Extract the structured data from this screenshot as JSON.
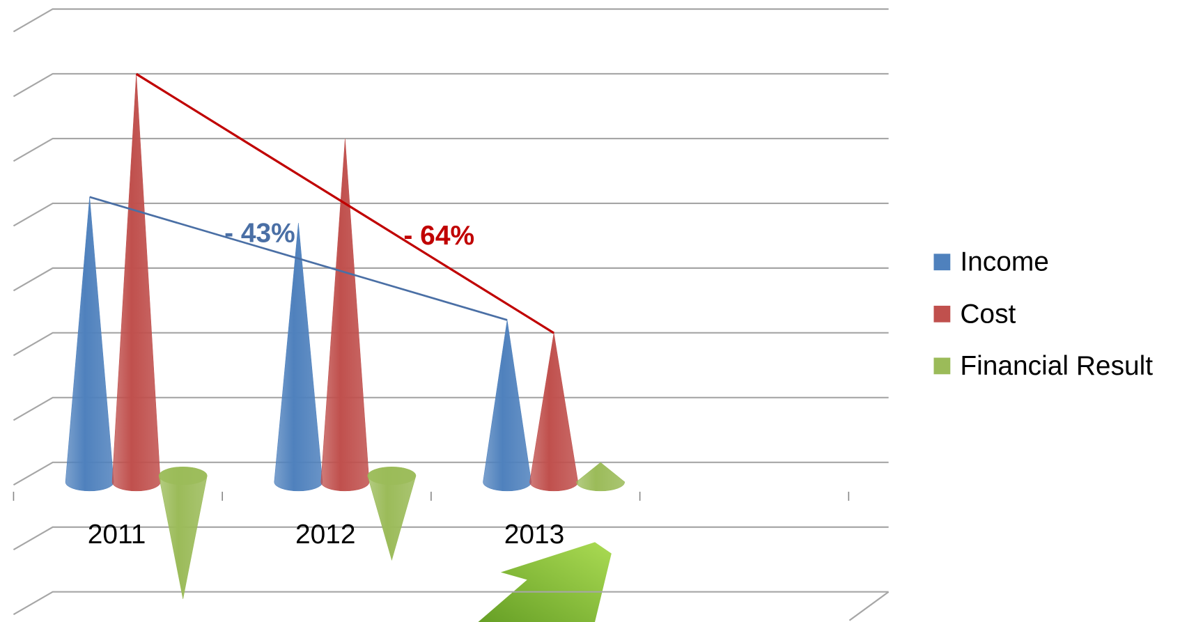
{
  "chart_data": {
    "type": "cone3d",
    "categories": [
      "2011",
      "2012",
      "2013"
    ],
    "series": [
      {
        "name": "Income",
        "color": "#4f81bd",
        "values": [
          4.4,
          4.0,
          2.5
        ]
      },
      {
        "name": "Cost",
        "color": "#c0504d",
        "values": [
          6.3,
          5.3,
          2.3
        ]
      },
      {
        "name": "Financial Result",
        "color": "#9bbb59",
        "values": [
          -1.9,
          -1.3,
          0.3
        ]
      }
    ],
    "ylim": [
      -2,
      7
    ],
    "yticks": [
      -2,
      -1,
      0,
      1,
      2,
      3,
      4,
      5,
      6,
      7
    ],
    "grid": true,
    "annotations": [
      {
        "text": "- 43%",
        "color": "#4a6fa5",
        "series": 0
      },
      {
        "text": "- 64%",
        "color": "#c00000",
        "series": 1
      }
    ],
    "legend": "right"
  }
}
